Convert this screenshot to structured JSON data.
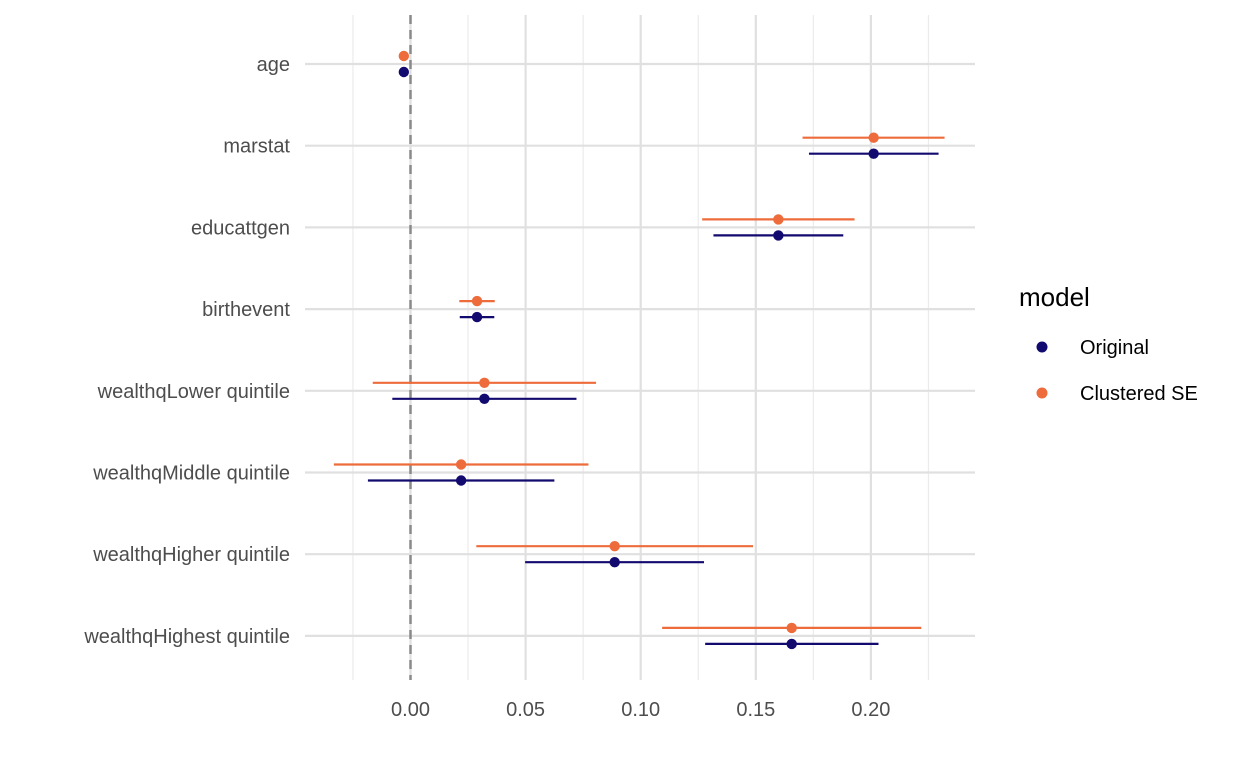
{
  "chart_data": {
    "type": "scatter",
    "subtype": "coefficient-plot",
    "orientation": "horizontal",
    "title": "",
    "xlabel": "",
    "ylabel": "",
    "categories": [
      "age",
      "marstat",
      "educattgen",
      "birthevent",
      "wealthqLower quintile",
      "wealthqMiddle quintile",
      "wealthqHigher quintile",
      "wealthqHighest quintile"
    ],
    "x_ticks": [
      "0.00",
      "0.05",
      "0.10",
      "0.15",
      "0.20"
    ],
    "x_tick_values": [
      0,
      0.05,
      0.1,
      0.15,
      0.2
    ],
    "xlim": [
      -0.0465,
      0.2475
    ],
    "reference_line": 0,
    "grid": true,
    "legend": {
      "title": "model",
      "position": "right"
    },
    "series": [
      {
        "name": "Original",
        "color": "#120a6e",
        "estimate": [
          -0.0029,
          0.2012,
          0.1598,
          0.0289,
          0.0321,
          0.022,
          0.0887,
          0.1656
        ],
        "lower": [
          -0.0029,
          0.1731,
          0.1316,
          0.0214,
          -0.0079,
          -0.0185,
          0.0498,
          0.128
        ],
        "upper": [
          -0.0029,
          0.2294,
          0.188,
          0.0364,
          0.0721,
          0.0625,
          0.1275,
          0.2033
        ]
      },
      {
        "name": "Clustered SE",
        "color": "#ee6c3b",
        "estimate": [
          -0.0029,
          0.2012,
          0.1598,
          0.0289,
          0.0321,
          0.022,
          0.0887,
          0.1656
        ],
        "lower": [
          -0.0029,
          0.1703,
          0.1267,
          0.0212,
          -0.0164,
          -0.0333,
          0.0286,
          0.1093
        ],
        "upper": [
          -0.0029,
          0.232,
          0.1929,
          0.0366,
          0.0806,
          0.0773,
          0.1488,
          0.2219
        ]
      }
    ]
  }
}
